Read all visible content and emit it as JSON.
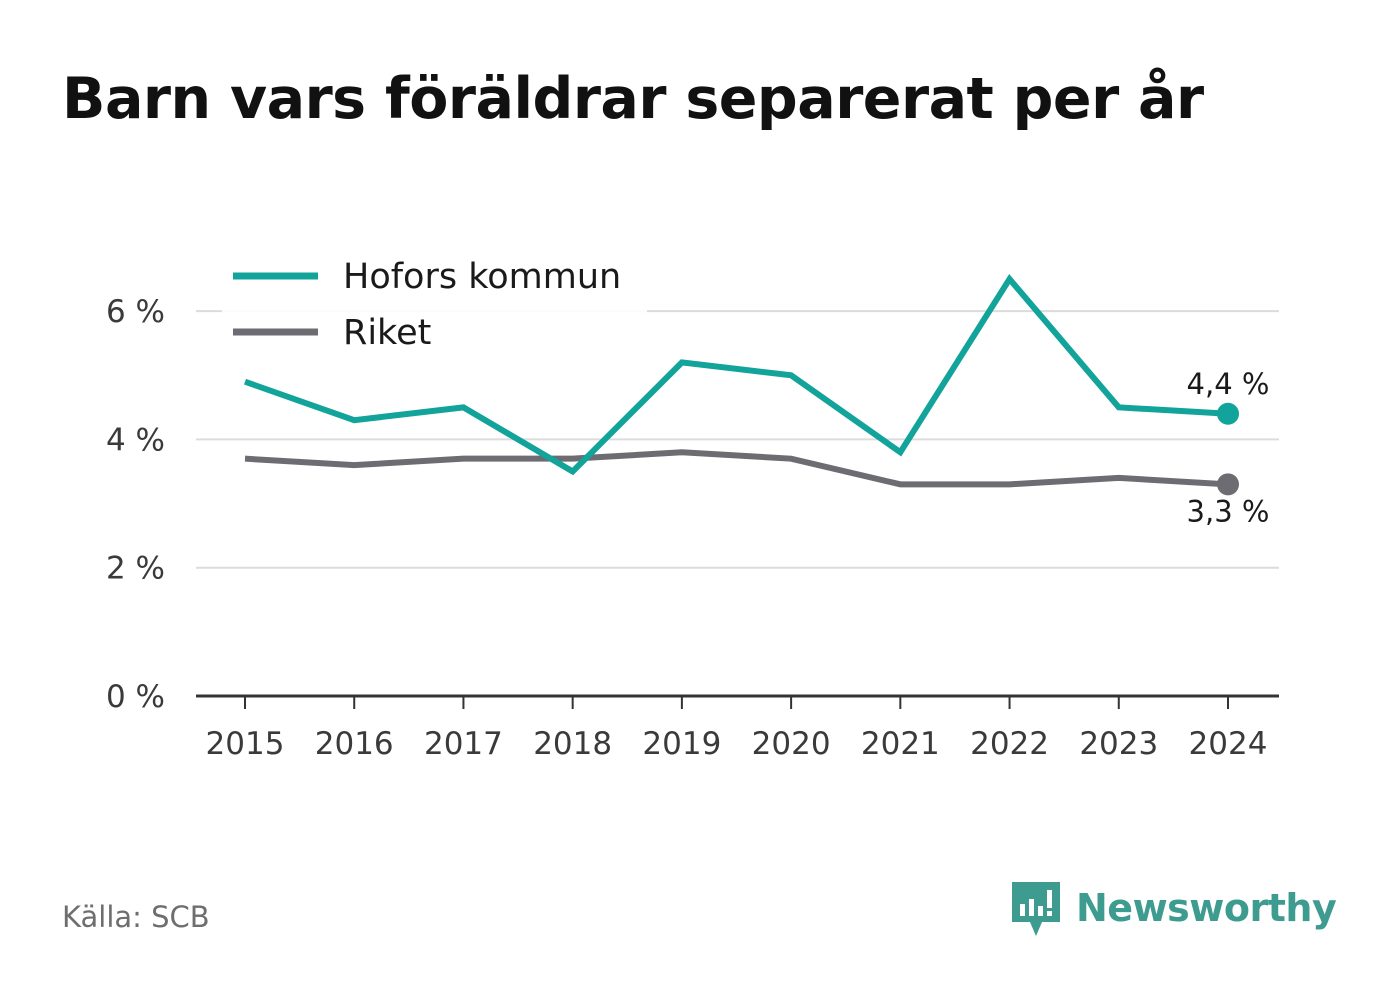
{
  "chart_data": {
    "type": "line",
    "title": "Barn vars föräldrar separerat per år",
    "xlabel": "",
    "ylabel": "",
    "categories": [
      "2015",
      "2016",
      "2017",
      "2018",
      "2019",
      "2020",
      "2021",
      "2022",
      "2023",
      "2024"
    ],
    "series": [
      {
        "name": "Hofors kommun",
        "color": "#12a39a",
        "values": [
          4.9,
          4.3,
          4.5,
          3.5,
          5.2,
          5.0,
          3.8,
          6.5,
          4.5,
          4.4
        ],
        "end_label": "4,4 %"
      },
      {
        "name": "Riket",
        "color": "#6d6c72",
        "values": [
          3.7,
          3.6,
          3.7,
          3.7,
          3.8,
          3.7,
          3.3,
          3.3,
          3.4,
          3.3
        ],
        "end_label": "3,3 %"
      }
    ],
    "ylim": [
      0,
      7
    ],
    "yticks": [
      0,
      2,
      4,
      6
    ],
    "ytick_labels": [
      "0 %",
      "2 %",
      "4 %",
      "6 %"
    ],
    "grid": true,
    "legend": "top-left"
  },
  "footer": {
    "source": "Källa: SCB",
    "brand": "Newsworthy",
    "brand_icon": "newsworthy-logo-icon",
    "brand_color": "#3d9b8f"
  }
}
